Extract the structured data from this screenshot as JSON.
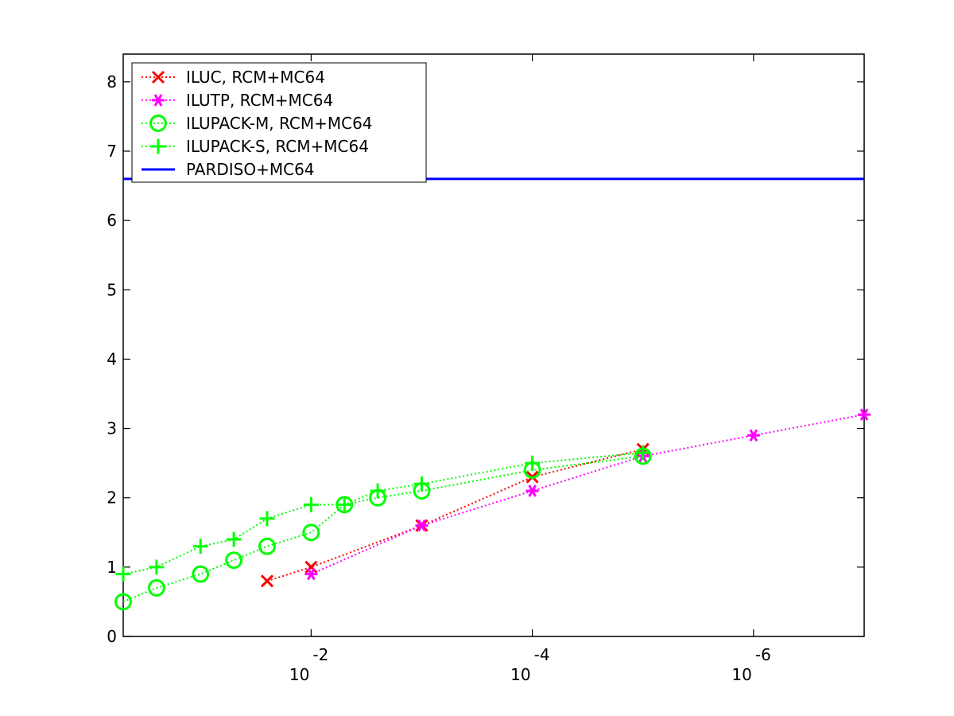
{
  "chart_data": {
    "type": "line",
    "title": "",
    "xlabel": "",
    "ylabel": "",
    "xscale": "log",
    "x_reversed": true,
    "xlim": [
      0.5,
      1e-07
    ],
    "ylim": [
      0,
      8.4
    ],
    "grid": false,
    "legend_position": "top-left",
    "x_tick_labels": [
      {
        "value": 0.01,
        "base": "10",
        "exp": "-2"
      },
      {
        "value": 0.0001,
        "base": "10",
        "exp": "-4"
      },
      {
        "value": 1e-06,
        "base": "10",
        "exp": "-6"
      }
    ],
    "y_ticks": [
      0,
      1,
      2,
      3,
      4,
      5,
      6,
      7,
      8
    ],
    "y_tick_labels": [
      "0",
      "1",
      "2",
      "3",
      "4",
      "5",
      "6",
      "7",
      "8"
    ],
    "series": [
      {
        "name": "ILUC, RCM+MC64",
        "color": "#ff0000",
        "marker": "x",
        "line": "dotted",
        "x": [
          0.025,
          0.01,
          0.001,
          0.0001,
          1e-05
        ],
        "y": [
          0.8,
          1.0,
          1.6,
          2.3,
          2.7
        ]
      },
      {
        "name": "ILUTP, RCM+MC64",
        "color": "#ff00ff",
        "marker": "asterisk",
        "line": "dotted",
        "x": [
          0.01,
          0.001,
          0.0001,
          1e-05,
          1e-06,
          1e-07
        ],
        "y": [
          0.9,
          1.6,
          2.1,
          2.6,
          2.9,
          3.2
        ]
      },
      {
        "name": "ILUPACK-M, RCM+MC64",
        "color": "#00ff00",
        "marker": "circle",
        "line": "dotted",
        "x": [
          0.5,
          0.25,
          0.1,
          0.05,
          0.025,
          0.01,
          0.005,
          0.0025,
          0.001,
          0.0001,
          1e-05
        ],
        "y": [
          0.5,
          0.7,
          0.9,
          1.1,
          1.3,
          1.5,
          1.9,
          2.0,
          2.1,
          2.4,
          2.6
        ]
      },
      {
        "name": "ILUPACK-S, RCM+MC64",
        "color": "#00ff00",
        "marker": "plus",
        "line": "dotted",
        "x": [
          0.5,
          0.25,
          0.1,
          0.05,
          0.025,
          0.01,
          0.005,
          0.0025,
          0.001,
          0.0001,
          1e-05
        ],
        "y": [
          0.9,
          1.0,
          1.3,
          1.4,
          1.7,
          1.9,
          1.9,
          2.1,
          2.2,
          2.5,
          2.65
        ]
      },
      {
        "name": "PARDISO+MC64",
        "color": "#0000ff",
        "marker": "none",
        "line": "solid",
        "x": [
          0.5,
          1e-07
        ],
        "y": [
          6.6,
          6.6
        ]
      }
    ]
  }
}
